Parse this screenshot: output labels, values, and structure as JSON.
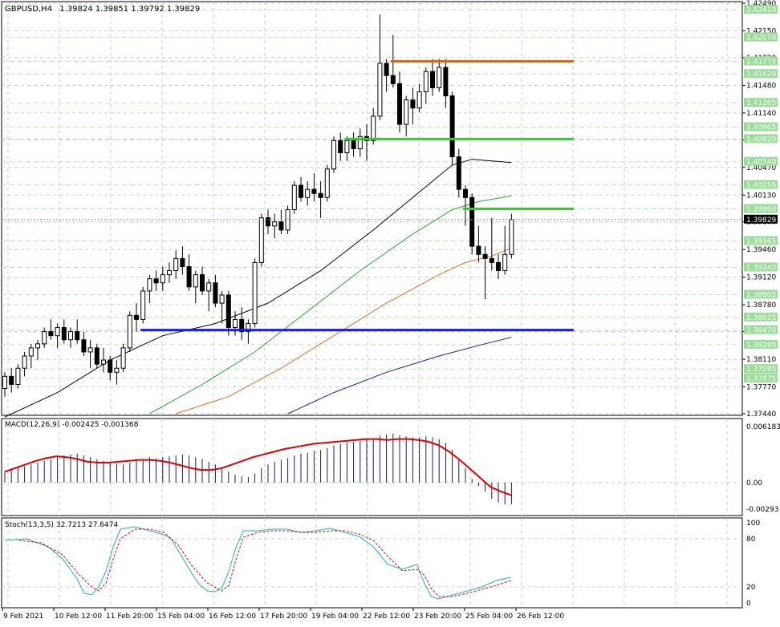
{
  "header": {
    "symbol": "GBPUSD,H4",
    "ohlc": "1.39824 1.39851 1.39792 1.39829"
  },
  "colors": {
    "grid": "#c8c8c8",
    "hline_green": "#aaeeaa",
    "bull": "#000000",
    "bear": "#000000",
    "ma_black": "#000000",
    "ma_green": "#22aa22",
    "ma_orange": "#e86a1a",
    "ma_blue": "#1a1aaa",
    "res_orange": "#ff5a00",
    "sup_green": "#33cc33",
    "sup_blue": "#1a1aff",
    "macd_hist": "#1a1a6a",
    "macd_signal": "#e00000",
    "stoch_main": "#1ab0c8",
    "stoch_signal": "#e00000",
    "price_label_bg": "#99dd99",
    "current_price_bg": "#000000"
  },
  "chart_data": [
    {
      "type": "candlestick",
      "title": "GBPUSD,H4",
      "ylim": [
        1.3744,
        1.4249
      ],
      "y_ticks": [
        "1.42490",
        "1.42150",
        "1.41820",
        "1.41480",
        "1.41140",
        "1.40810",
        "1.40470",
        "1.40130",
        "1.39800",
        "1.39460",
        "1.39120",
        "1.38780",
        "1.38450",
        "1.38110",
        "1.37770",
        "1.37440"
      ],
      "level_labels": [
        "1.42410",
        "1.42070",
        "1.41775",
        "1.41620",
        "1.41265",
        "1.40965",
        "1.40820",
        "1.40540",
        "1.40255",
        "1.39960",
        "1.39565",
        "1.39240",
        "1.38905",
        "1.38625",
        "1.38470",
        "1.38290",
        "1.37990",
        "1.37875"
      ],
      "current_price": "1.39829",
      "x_labels": [
        "9 Feb 2021",
        "10 Feb 12:00",
        "11 Feb 20:00",
        "15 Feb 04:00",
        "16 Feb 12:00",
        "17 Feb 20:00",
        "19 Feb 04:00",
        "22 Feb 12:00",
        "23 Feb 20:00",
        "25 Feb 04:00",
        "26 Feb 12:00"
      ],
      "candles": [
        [
          1.3775,
          1.3795,
          1.3765,
          1.379
        ],
        [
          1.379,
          1.38,
          1.377,
          1.378
        ],
        [
          1.378,
          1.3805,
          1.3775,
          1.38
        ],
        [
          1.38,
          1.382,
          1.379,
          1.3815
        ],
        [
          1.3815,
          1.383,
          1.38,
          1.3825
        ],
        [
          1.3825,
          1.3835,
          1.381,
          1.383
        ],
        [
          1.383,
          1.385,
          1.3825,
          1.3845
        ],
        [
          1.3845,
          1.386,
          1.3835,
          1.384
        ],
        [
          1.384,
          1.3855,
          1.3825,
          1.385
        ],
        [
          1.385,
          1.386,
          1.383,
          1.3835
        ],
        [
          1.3835,
          1.385,
          1.3825,
          1.3845
        ],
        [
          1.3845,
          1.386,
          1.383,
          1.3835
        ],
        [
          1.3835,
          1.3845,
          1.3815,
          1.382
        ],
        [
          1.382,
          1.3835,
          1.38,
          1.3825
        ],
        [
          1.3825,
          1.383,
          1.38,
          1.3805
        ],
        [
          1.3805,
          1.3825,
          1.3795,
          1.381
        ],
        [
          1.381,
          1.3815,
          1.3785,
          1.3795
        ],
        [
          1.3795,
          1.381,
          1.378,
          1.38
        ],
        [
          1.38,
          1.383,
          1.3795,
          1.3825
        ],
        [
          1.3825,
          1.387,
          1.382,
          1.3865
        ],
        [
          1.3865,
          1.388,
          1.3845,
          1.386
        ],
        [
          1.386,
          1.39,
          1.3855,
          1.3895
        ],
        [
          1.3895,
          1.3915,
          1.388,
          1.391
        ],
        [
          1.391,
          1.392,
          1.3895,
          1.3905
        ],
        [
          1.3905,
          1.3925,
          1.3895,
          1.3915
        ],
        [
          1.3915,
          1.393,
          1.3905,
          1.392
        ],
        [
          1.392,
          1.3945,
          1.391,
          1.3935
        ],
        [
          1.3935,
          1.395,
          1.3915,
          1.3925
        ],
        [
          1.3925,
          1.394,
          1.3895,
          1.39
        ],
        [
          1.39,
          1.392,
          1.388,
          1.3915
        ],
        [
          1.3915,
          1.3925,
          1.389,
          1.3895
        ],
        [
          1.3895,
          1.391,
          1.387,
          1.3905
        ],
        [
          1.3905,
          1.3915,
          1.3875,
          1.388
        ],
        [
          1.388,
          1.3895,
          1.3855,
          1.389
        ],
        [
          1.389,
          1.3895,
          1.384,
          1.385
        ],
        [
          1.385,
          1.387,
          1.384,
          1.386
        ],
        [
          1.386,
          1.3875,
          1.3835,
          1.3845
        ],
        [
          1.3845,
          1.386,
          1.383,
          1.3855
        ],
        [
          1.3855,
          1.3935,
          1.385,
          1.393
        ],
        [
          1.393,
          1.399,
          1.3925,
          1.3985
        ],
        [
          1.3985,
          1.3995,
          1.3965,
          1.3975
        ],
        [
          1.3975,
          1.399,
          1.396,
          1.398
        ],
        [
          1.398,
          1.3995,
          1.3965,
          1.397
        ],
        [
          1.397,
          1.4,
          1.3965,
          1.3995
        ],
        [
          1.3995,
          1.403,
          1.399,
          1.4025
        ],
        [
          1.4025,
          1.4035,
          1.4005,
          1.401
        ],
        [
          1.401,
          1.403,
          1.4,
          1.402
        ],
        [
          1.402,
          1.404,
          1.4005,
          1.4015
        ],
        [
          1.4015,
          1.403,
          1.3985,
          1.401
        ],
        [
          1.401,
          1.405,
          1.4005,
          1.4045
        ],
        [
          1.4045,
          1.4085,
          1.404,
          1.408
        ],
        [
          1.408,
          1.409,
          1.4055,
          1.4065
        ],
        [
          1.4065,
          1.4085,
          1.4055,
          1.408
        ],
        [
          1.408,
          1.409,
          1.406,
          1.407
        ],
        [
          1.407,
          1.4095,
          1.406,
          1.4085
        ],
        [
          1.4085,
          1.41,
          1.4055,
          1.408
        ],
        [
          1.408,
          1.412,
          1.4075,
          1.411
        ],
        [
          1.411,
          1.4235,
          1.4105,
          1.4175
        ],
        [
          1.4175,
          1.418,
          1.414,
          1.416
        ],
        [
          1.416,
          1.421,
          1.4145,
          1.415
        ],
        [
          1.415,
          1.4165,
          1.409,
          1.41
        ],
        [
          1.41,
          1.4135,
          1.4085,
          1.413
        ],
        [
          1.413,
          1.4145,
          1.41,
          1.412
        ],
        [
          1.412,
          1.415,
          1.4115,
          1.414
        ],
        [
          1.414,
          1.417,
          1.4125,
          1.4165
        ],
        [
          1.4165,
          1.418,
          1.4135,
          1.4145
        ],
        [
          1.4145,
          1.418,
          1.414,
          1.417
        ],
        [
          1.417,
          1.418,
          1.412,
          1.4135
        ],
        [
          1.4135,
          1.414,
          1.405,
          1.406
        ],
        [
          1.406,
          1.407,
          1.401,
          1.402
        ],
        [
          1.402,
          1.4025,
          1.3975,
          1.401
        ],
        [
          1.401,
          1.4015,
          1.394,
          1.395
        ],
        [
          1.395,
          1.3975,
          1.393,
          1.394
        ],
        [
          1.394,
          1.395,
          1.3885,
          1.3935
        ],
        [
          1.3935,
          1.3985,
          1.392,
          1.393
        ],
        [
          1.393,
          1.394,
          1.391,
          1.392
        ],
        [
          1.392,
          1.3975,
          1.3915,
          1.394
        ],
        [
          1.394,
          1.399,
          1.3935,
          1.3983
        ]
      ],
      "ma_black": [
        [
          0,
          1.374
        ],
        [
          8,
          1.377
        ],
        [
          16,
          1.381
        ],
        [
          24,
          1.384
        ],
        [
          32,
          1.3855
        ],
        [
          40,
          1.388
        ],
        [
          48,
          1.392
        ],
        [
          56,
          1.397
        ],
        [
          62,
          1.401
        ],
        [
          68,
          1.405
        ],
        [
          71,
          1.4057
        ],
        [
          77,
          1.4053
        ]
      ],
      "ma_green": [
        [
          22,
          1.3744
        ],
        [
          30,
          1.378
        ],
        [
          38,
          1.382
        ],
        [
          46,
          1.387
        ],
        [
          54,
          1.392
        ],
        [
          62,
          1.3965
        ],
        [
          68,
          1.3995
        ],
        [
          72,
          1.4005
        ],
        [
          77,
          1.4012
        ]
      ],
      "ma_orange": [
        [
          26,
          1.3744
        ],
        [
          34,
          1.3765
        ],
        [
          42,
          1.38
        ],
        [
          50,
          1.384
        ],
        [
          58,
          1.388
        ],
        [
          66,
          1.3915
        ],
        [
          70,
          1.393
        ],
        [
          74,
          1.3938
        ],
        [
          77,
          1.3948
        ]
      ],
      "ma_blue": [
        [
          43,
          1.3744
        ],
        [
          50,
          1.377
        ],
        [
          58,
          1.3795
        ],
        [
          66,
          1.3815
        ],
        [
          72,
          1.3828
        ],
        [
          77,
          1.3838
        ]
      ],
      "h_lines": [
        {
          "name": "resistance",
          "value": 1.41775,
          "from": 59,
          "to": 81,
          "color": "res_orange"
        },
        {
          "name": "support-mid",
          "value": 1.4082,
          "from": 52,
          "to": 81,
          "color": "sup_green"
        },
        {
          "name": "support-near",
          "value": 1.3996,
          "from": 70,
          "to": 81,
          "color": "sup_green"
        },
        {
          "name": "support-low",
          "value": 1.3847,
          "from": 21,
          "to": 81,
          "color": "sup_blue"
        }
      ]
    },
    {
      "type": "bar",
      "title": "MACD(12,26,9) -0.002425 -0.001368",
      "ylim": [
        -0.00293,
        0.006183
      ],
      "y_ticks": [
        "0.006183",
        "0.00",
        "-0.00293"
      ],
      "histogram": [
        0.0012,
        0.0014,
        0.0016,
        0.0018,
        0.002,
        0.0022,
        0.0024,
        0.0026,
        0.0028,
        0.003,
        0.0031,
        0.0032,
        0.003,
        0.0028,
        0.0026,
        0.0024,
        0.0022,
        0.0021,
        0.002,
        0.0022,
        0.0024,
        0.0026,
        0.0028,
        0.0027,
        0.0028,
        0.0029,
        0.003,
        0.0031,
        0.003,
        0.0028,
        0.0026,
        0.0023,
        0.002,
        0.0016,
        0.0012,
        0.0009,
        0.0007,
        0.0006,
        0.001,
        0.0016,
        0.002,
        0.0023,
        0.0025,
        0.0027,
        0.003,
        0.0032,
        0.0033,
        0.0035,
        0.0036,
        0.0038,
        0.0041,
        0.0043,
        0.0044,
        0.0045,
        0.0046,
        0.0047,
        0.0048,
        0.0052,
        0.0053,
        0.0054,
        0.0052,
        0.0051,
        0.005,
        0.005,
        0.0051,
        0.005,
        0.0048,
        0.0044,
        0.0036,
        0.0026,
        0.0016,
        0.0004,
        -0.0004,
        -0.001,
        -0.0018,
        -0.0022,
        -0.0024,
        -0.0024
      ],
      "signal": [
        0.0012,
        0.0016,
        0.002,
        0.0024,
        0.0027,
        0.0029,
        0.0028,
        0.0026,
        0.0023,
        0.0022,
        0.0022,
        0.0023,
        0.0024,
        0.0025,
        0.0025,
        0.0024,
        0.0022,
        0.0019,
        0.0016,
        0.0014,
        0.0014,
        0.0016,
        0.002,
        0.0024,
        0.0028,
        0.0031,
        0.0034,
        0.0037,
        0.0039,
        0.0041,
        0.0043,
        0.0044,
        0.0045,
        0.0046,
        0.0047,
        0.0048,
        0.0048,
        0.0047,
        0.0048,
        0.0048,
        0.0047,
        0.0045,
        0.0041,
        0.0034,
        0.0025,
        0.0015,
        0.0005,
        -0.0005,
        -0.001,
        -0.0014
      ],
      "signal_from": 0
    },
    {
      "type": "line",
      "title": "Stoch(13,3,5) 32.7213 27.6474",
      "ylim": [
        0,
        100
      ],
      "y_ticks": [
        "100",
        "80",
        "20",
        "0"
      ],
      "main": [
        [
          0,
          78
        ],
        [
          3,
          80
        ],
        [
          6,
          70
        ],
        [
          8,
          55
        ],
        [
          10,
          30
        ],
        [
          11,
          12
        ],
        [
          12,
          10
        ],
        [
          13,
          20
        ],
        [
          14,
          40
        ],
        [
          15,
          70
        ],
        [
          16,
          92
        ],
        [
          18,
          95
        ],
        [
          20,
          90
        ],
        [
          22,
          85
        ],
        [
          23,
          80
        ],
        [
          24,
          65
        ],
        [
          25,
          50
        ],
        [
          26,
          35
        ],
        [
          27,
          22
        ],
        [
          28,
          15
        ],
        [
          29,
          14
        ],
        [
          30,
          18
        ],
        [
          31,
          40
        ],
        [
          32,
          70
        ],
        [
          33,
          90
        ],
        [
          35,
          90
        ],
        [
          37,
          92
        ],
        [
          39,
          92
        ],
        [
          41,
          88
        ],
        [
          43,
          90
        ],
        [
          45,
          93
        ],
        [
          47,
          88
        ],
        [
          49,
          83
        ],
        [
          51,
          70
        ],
        [
          53,
          48
        ],
        [
          55,
          42
        ],
        [
          57,
          48
        ],
        [
          58,
          25
        ],
        [
          59,
          8
        ],
        [
          60,
          5
        ],
        [
          62,
          10
        ],
        [
          64,
          15
        ],
        [
          66,
          20
        ],
        [
          68,
          28
        ],
        [
          70,
          32
        ]
      ],
      "signal": [
        [
          2,
          78
        ],
        [
          5,
          75
        ],
        [
          8,
          60
        ],
        [
          10,
          38
        ],
        [
          12,
          20
        ],
        [
          13,
          15
        ],
        [
          14,
          25
        ],
        [
          15,
          55
        ],
        [
          16,
          80
        ],
        [
          18,
          92
        ],
        [
          20,
          92
        ],
        [
          22,
          88
        ],
        [
          24,
          72
        ],
        [
          26,
          45
        ],
        [
          28,
          25
        ],
        [
          30,
          15
        ],
        [
          31,
          22
        ],
        [
          32,
          55
        ],
        [
          33,
          82
        ],
        [
          35,
          88
        ],
        [
          37,
          90
        ],
        [
          39,
          90
        ],
        [
          41,
          88
        ],
        [
          43,
          88
        ],
        [
          45,
          90
        ],
        [
          47,
          90
        ],
        [
          49,
          86
        ],
        [
          51,
          78
        ],
        [
          53,
          58
        ],
        [
          55,
          40
        ],
        [
          57,
          42
        ],
        [
          58,
          35
        ],
        [
          59,
          18
        ],
        [
          60,
          8
        ],
        [
          62,
          8
        ],
        [
          64,
          12
        ],
        [
          66,
          17
        ],
        [
          68,
          22
        ],
        [
          70,
          28
        ]
      ]
    }
  ]
}
